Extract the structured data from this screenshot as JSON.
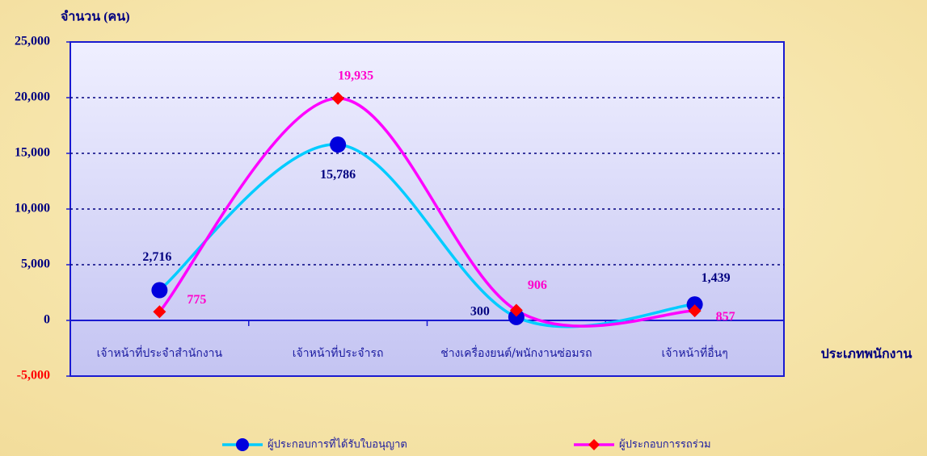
{
  "chart_data": {
    "type": "line",
    "title": "จำนวน (คน)",
    "x_label": "ประเภทพนักงาน",
    "categories": [
      "เจ้าหน้าที่ประจำสำนักงาน",
      "เจ้าหน้าที่ประจำรถ",
      "ช่างเครื่องยนต์/พนักงานซ่อมรถ",
      "เจ้าหน้าที่อื่นๆ"
    ],
    "series": [
      {
        "name": "ผู้ประกอบการที่ได้รับใบอนุญาต",
        "color": "#00ccff",
        "marker_color": "#0000dd",
        "label_color": "#000080",
        "values": [
          2716,
          15786,
          300,
          1439
        ],
        "value_labels": [
          "2,716",
          "15,786",
          "300",
          "1,439"
        ]
      },
      {
        "name": "ผู้ประกอบการรถร่วม",
        "color": "#ff00ff",
        "marker_color": "#ff0000",
        "label_color": "#ff00cc",
        "values": [
          775,
          19935,
          906,
          857
        ],
        "value_labels": [
          "775",
          "19,935",
          "906",
          "857"
        ]
      }
    ],
    "ylim": [
      -5000,
      25000
    ],
    "yticks": [
      {
        "value": -5000,
        "label": "-5,000"
      },
      0,
      {
        "value": 5000,
        "label": "5,000"
      },
      {
        "value": 10000,
        "label": "10,000"
      },
      {
        "value": 15000,
        "label": "15,000"
      },
      {
        "value": 20000,
        "label": "20,000"
      },
      {
        "value": 25000,
        "label": "25,000"
      }
    ],
    "grid": true
  }
}
